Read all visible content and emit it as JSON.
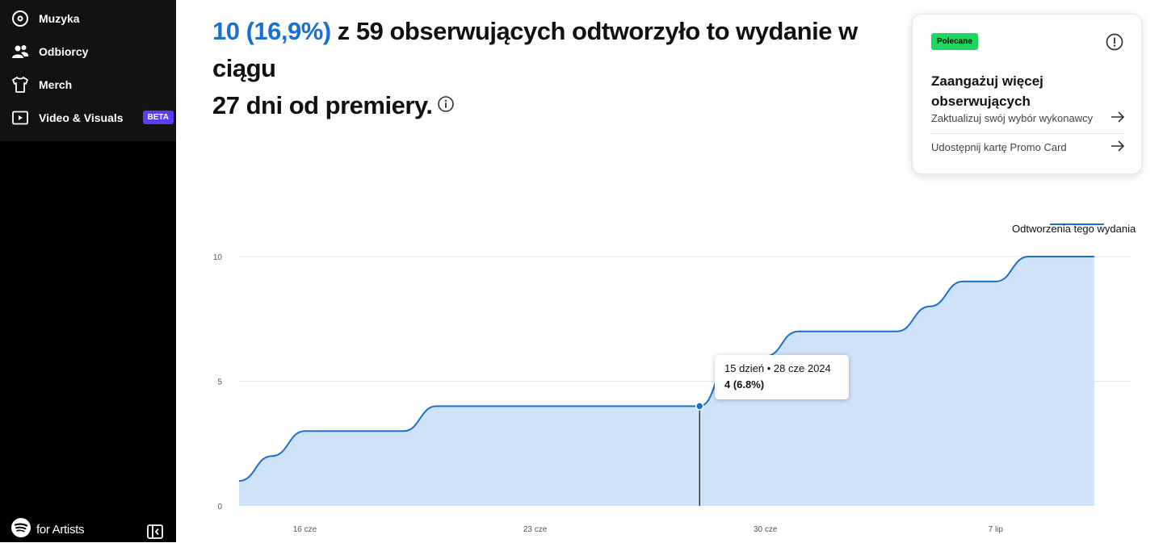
{
  "sidebar": {
    "items": [
      {
        "label": "Muzyka",
        "icon": "music-disc-icon"
      },
      {
        "label": "Odbiorcy",
        "icon": "audience-icon"
      },
      {
        "label": "Merch",
        "icon": "tshirt-icon"
      },
      {
        "label": "Video & Visuals",
        "icon": "video-icon",
        "badge": "BETA"
      }
    ],
    "brand": "for Artists"
  },
  "headline": {
    "highlight": "10 (16,9%)",
    "rest_line1": " z 59 obserwujących odtworzyło to wydanie w ciągu",
    "rest_line2": "27 dni od premiery."
  },
  "card": {
    "tag": "Polecane",
    "title": "Zaangażuj więcej obserwujących",
    "links": [
      "Zaktualizuj swój wybór wykonawcy",
      "Udostępnij kartę Promo Card"
    ]
  },
  "legend": {
    "label": "Odtworzenia tego wydania",
    "color": "#1a6fd1"
  },
  "tooltip": {
    "line1": "15 dzień • 28 cze 2024",
    "line2": "4 (6.8%)"
  },
  "chart_data": {
    "type": "area",
    "title": "",
    "xlabel": "",
    "ylabel": "",
    "ylim": [
      0,
      10
    ],
    "yticks": [
      "0",
      "5",
      "10"
    ],
    "xticks": [
      "16 cze",
      "23 cze",
      "30 cze",
      "7 lip"
    ],
    "grid": true,
    "legend_position": "top-right",
    "series": [
      {
        "name": "Odtworzenia tego wydania",
        "color": "#1a6fd1",
        "fill": "#cfe2f8",
        "x": [
          "14 cze",
          "15 cze",
          "16 cze",
          "17 cze",
          "18 cze",
          "19 cze",
          "20 cze",
          "21 cze",
          "22 cze",
          "23 cze",
          "24 cze",
          "25 cze",
          "26 cze",
          "27 cze",
          "28 cze",
          "29 cze",
          "30 cze",
          "1 lip",
          "2 lip",
          "3 lip",
          "4 lip",
          "5 lip",
          "6 lip",
          "7 lip",
          "8 lip",
          "9 lip",
          "10 lip"
        ],
        "values": [
          1,
          2,
          3,
          3,
          3,
          3,
          4,
          4,
          4,
          4,
          4,
          4,
          4,
          4,
          4,
          6,
          6,
          7,
          7,
          7,
          7,
          8,
          9,
          9,
          10,
          10,
          10
        ]
      }
    ],
    "highlight_index": 14
  }
}
